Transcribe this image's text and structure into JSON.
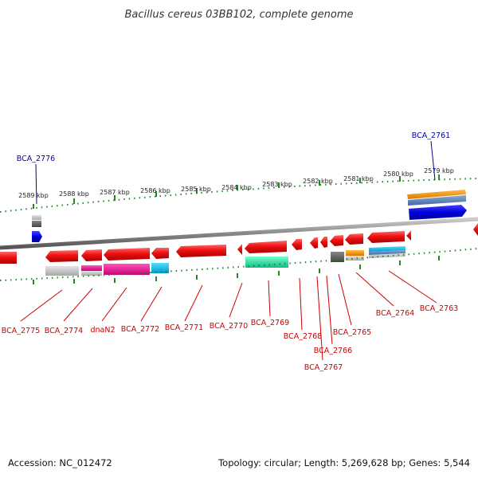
{
  "title": "Bacillus cereus 03BB102, complete genome",
  "footer": {
    "accession": "Accession: NC_012472",
    "summary": "Topology: circular; Length: 5,269,628 bp; Genes: 5,544"
  },
  "colors": {
    "gene_forward": "#ee1111",
    "gene_reverse": "#ee1111",
    "gene_blue": "#0000dd",
    "label_red": "#cc0000",
    "label_blue": "#000099",
    "tick_green": "#228822",
    "backbone": "#888888"
  },
  "scale_labels": [
    "2589 kbp",
    "2588 kbp",
    "2587 kbp",
    "2586 kbp",
    "2585 kbp",
    "2584 kbp",
    "2583 kbp",
    "2582 kbp",
    "2581 kbp",
    "2580 kbp",
    "2579 kbp"
  ],
  "genes_outer": [
    "BCA_2776",
    "BCA_2761"
  ],
  "genes_inner": [
    "BCA_2775",
    "BCA_2774",
    "dnaN2",
    "BCA_2772",
    "BCA_2771",
    "BCA_2770",
    "BCA_2769",
    "BCA_2768",
    "BCA_2767",
    "BCA_2766",
    "BCA_2765",
    "BCA_2764",
    "BCA_2763"
  ]
}
